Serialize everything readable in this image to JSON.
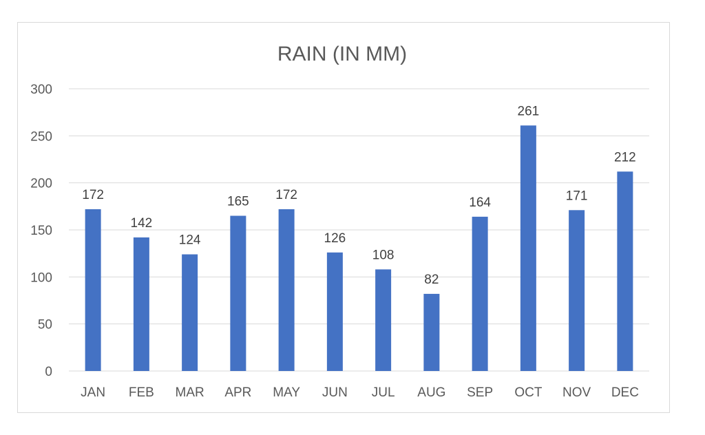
{
  "chart_data": {
    "type": "bar",
    "title": "RAIN (IN MM)",
    "xlabel": "",
    "ylabel": "",
    "categories": [
      "JAN",
      "FEB",
      "MAR",
      "APR",
      "MAY",
      "JUN",
      "JUL",
      "AUG",
      "SEP",
      "OCT",
      "NOV",
      "DEC"
    ],
    "values": [
      172,
      142,
      124,
      165,
      172,
      126,
      108,
      82,
      164,
      261,
      171,
      212
    ],
    "data_labels": [
      "172",
      "142",
      "124",
      "165",
      "172",
      "126",
      "108",
      "82",
      "164",
      "261",
      "171",
      "212"
    ],
    "y_ticks": [
      "0",
      "50",
      "100",
      "150",
      "200",
      "250",
      "300"
    ],
    "ylim": [
      0,
      300
    ],
    "grid": true,
    "legend": "none",
    "bar_color": "#4472c4"
  }
}
